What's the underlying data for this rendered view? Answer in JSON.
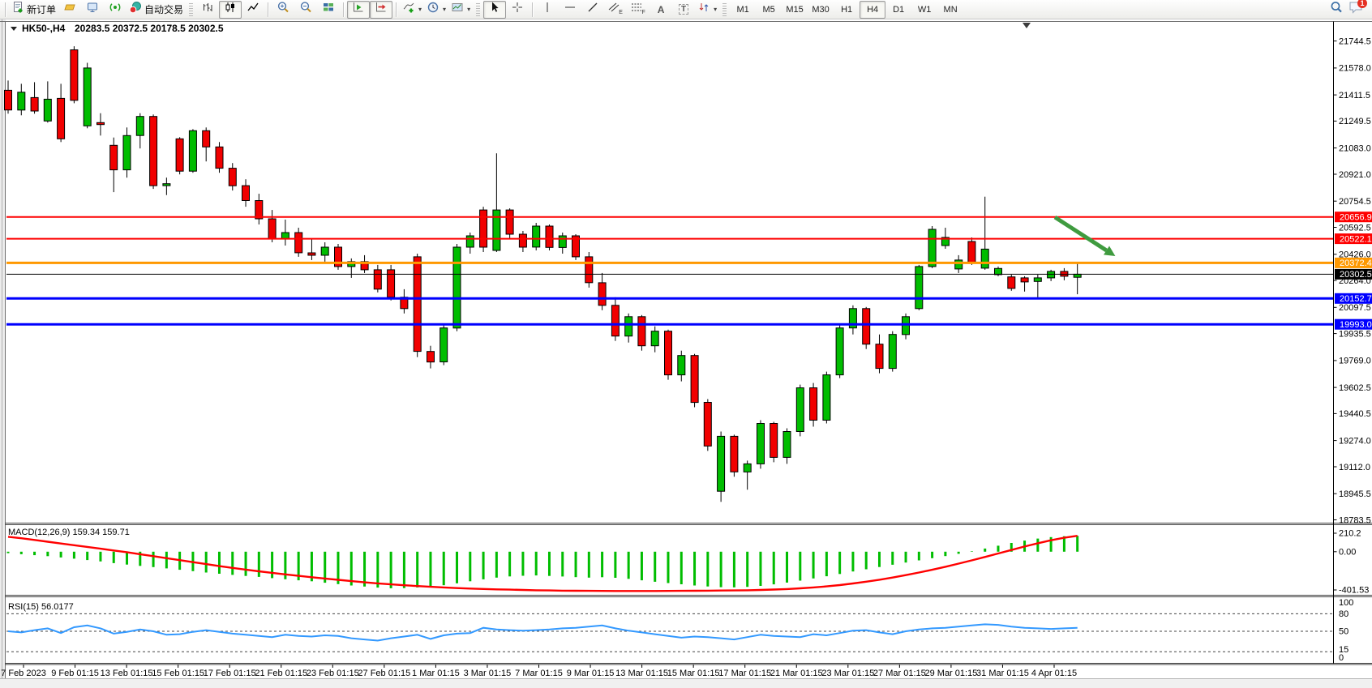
{
  "toolbar": {
    "new_order": "新订单",
    "autotrading": "自动交易",
    "timeframes": [
      "M1",
      "M5",
      "M15",
      "M30",
      "H1",
      "H4",
      "D1",
      "W1",
      "MN"
    ],
    "active_timeframe": "H4",
    "notification_count": "1",
    "channel_suffix": "E",
    "fibo_suffix": "F",
    "text_tool": "A",
    "label_tool": "T"
  },
  "chart_data": {
    "type": "candlestick",
    "symbol": "HK50-",
    "timeframe": "H4",
    "title_text": "HK50-,H4",
    "title_ohlc": "20283.5 20372.5 20178.5 20302.5",
    "last_bar": {
      "open": 20283.5,
      "high": 20372.5,
      "low": 20178.5,
      "close": 20302.5
    },
    "colors": {
      "bull": "#00bd00",
      "bear": "#f10000",
      "wick": "#000000",
      "macd_hist": "#00bd00",
      "macd_signal": "#ff0000",
      "rsi_line": "#3399ff",
      "arrow": "#3f9b3f",
      "axis_text": "#000000"
    },
    "price_axis_ticks": [
      "21744.5",
      "21578.0",
      "21411.5",
      "21249.5",
      "21083.0",
      "20921.0",
      "20754.5",
      "20592.5",
      "20426.0",
      "20264.0",
      "20097.5",
      "19935.5",
      "19769.0",
      "19602.5",
      "19440.5",
      "19274.0",
      "19112.0",
      "18945.5",
      "18783.5"
    ],
    "hlines": [
      {
        "price": 20656.9,
        "label": "20656.9",
        "color": "#fe0000",
        "width": 2
      },
      {
        "price": 20522.1,
        "label": "20522.1",
        "color": "#fe0000",
        "width": 2
      },
      {
        "price": 20372.4,
        "label": "20372.4",
        "color": "#ff9800",
        "width": 3
      },
      {
        "price": 20302.5,
        "label": "20302.5",
        "color": "#000000",
        "width": 1,
        "current": true
      },
      {
        "price": 20152.7,
        "label": "20152.7",
        "color": "#0000fe",
        "width": 3
      },
      {
        "price": 19993.0,
        "label": "19993.0",
        "color": "#0000fe",
        "width": 3
      }
    ],
    "x_labels": [
      "7 Feb 2023",
      "9 Feb 01:15",
      "13 Feb 01:15",
      "15 Feb 01:15",
      "17 Feb 01:15",
      "21 Feb 01:15",
      "23 Feb 01:15",
      "27 Feb 01:15",
      "1 Mar 01:15",
      "3 Mar 01:15",
      "7 Mar 01:15",
      "9 Mar 01:15",
      "13 Mar 01:15",
      "15 Mar 01:15",
      "17 Mar 01:15",
      "21 Mar 01:15",
      "23 Mar 01:15",
      "27 Mar 01:15",
      "29 Mar 01:15",
      "31 Mar 01:15",
      "4 Apr 01:15"
    ],
    "candles": [
      [
        21440,
        21500,
        21295,
        21318
      ],
      [
        21318,
        21480,
        21285,
        21428
      ],
      [
        21395,
        21490,
        21295,
        21312
      ],
      [
        21250,
        21495,
        21240,
        21385
      ],
      [
        21390,
        21480,
        21120,
        21140
      ],
      [
        21690,
        21712,
        21360,
        21378
      ],
      [
        21220,
        21610,
        21205,
        21578
      ],
      [
        21240,
        21298,
        21160,
        21228
      ],
      [
        21100,
        21148,
        20810,
        20948
      ],
      [
        20948,
        21210,
        20900,
        21160
      ],
      [
        21160,
        21298,
        21080,
        21278
      ],
      [
        21278,
        21290,
        20830,
        20850
      ],
      [
        20850,
        20900,
        20792,
        20862
      ],
      [
        21140,
        21150,
        20920,
        20940
      ],
      [
        20940,
        21200,
        20930,
        21190
      ],
      [
        21190,
        21210,
        21000,
        21090
      ],
      [
        21090,
        21120,
        20930,
        20958
      ],
      [
        20958,
        20990,
        20820,
        20850
      ],
      [
        20850,
        20890,
        20720,
        20758
      ],
      [
        20758,
        20800,
        20610,
        20645
      ],
      [
        20645,
        20700,
        20500,
        20520
      ],
      [
        20520,
        20640,
        20480,
        20560
      ],
      [
        20560,
        20590,
        20410,
        20435
      ],
      [
        20435,
        20520,
        20390,
        20420
      ],
      [
        20420,
        20500,
        20380,
        20470
      ],
      [
        20470,
        20490,
        20330,
        20350
      ],
      [
        20350,
        20400,
        20280,
        20380
      ],
      [
        20380,
        20420,
        20310,
        20330
      ],
      [
        20330,
        20360,
        20190,
        20210
      ],
      [
        20330,
        20360,
        20140,
        20160
      ],
      [
        20160,
        20210,
        20060,
        20090
      ],
      [
        20410,
        20430,
        19790,
        19825
      ],
      [
        19825,
        19860,
        19720,
        19760
      ],
      [
        19760,
        19990,
        19740,
        19970
      ],
      [
        19970,
        20490,
        19950,
        20470
      ],
      [
        20470,
        20560,
        20430,
        20540
      ],
      [
        20700,
        20720,
        20440,
        20470
      ],
      [
        20450,
        21050,
        20440,
        20700
      ],
      [
        20700,
        20710,
        20520,
        20550
      ],
      [
        20550,
        20570,
        20440,
        20470
      ],
      [
        20470,
        20620,
        20450,
        20600
      ],
      [
        20600,
        20610,
        20450,
        20468
      ],
      [
        20468,
        20560,
        20430,
        20540
      ],
      [
        20540,
        20550,
        20390,
        20410
      ],
      [
        20410,
        20440,
        20220,
        20250
      ],
      [
        20250,
        20310,
        20080,
        20110
      ],
      [
        20110,
        20160,
        19890,
        19920
      ],
      [
        19920,
        20060,
        19880,
        20040
      ],
      [
        20040,
        20050,
        19830,
        19860
      ],
      [
        19860,
        19980,
        19820,
        19950
      ],
      [
        19950,
        19960,
        19650,
        19680
      ],
      [
        19680,
        19830,
        19640,
        19800
      ],
      [
        19800,
        19810,
        19480,
        19510
      ],
      [
        19510,
        19530,
        19210,
        19240
      ],
      [
        18960,
        19330,
        18895,
        19300
      ],
      [
        19300,
        19310,
        19050,
        19080
      ],
      [
        19080,
        19150,
        18970,
        19130
      ],
      [
        19130,
        19400,
        19100,
        19380
      ],
      [
        19380,
        19390,
        19140,
        19170
      ],
      [
        19170,
        19350,
        19130,
        19330
      ],
      [
        19330,
        19620,
        19300,
        19600
      ],
      [
        19600,
        19630,
        19360,
        19400
      ],
      [
        19400,
        19700,
        19380,
        19680
      ],
      [
        19680,
        19990,
        19660,
        19970
      ],
      [
        19970,
        20110,
        19930,
        20090
      ],
      [
        20090,
        20100,
        19840,
        19870
      ],
      [
        19870,
        19930,
        19690,
        19720
      ],
      [
        19720,
        19950,
        19700,
        19930
      ],
      [
        19930,
        20060,
        19900,
        20040
      ],
      [
        20090,
        20360,
        20080,
        20350
      ],
      [
        20350,
        20600,
        20340,
        20580
      ],
      [
        20480,
        20590,
        20460,
        20530
      ],
      [
        20335,
        20420,
        20310,
        20390
      ],
      [
        20505,
        20530,
        20360,
        20375
      ],
      [
        20340,
        20782,
        20330,
        20458
      ],
      [
        20300,
        20350,
        20290,
        20338
      ],
      [
        20286,
        20300,
        20200,
        20215
      ],
      [
        20280,
        20290,
        20195,
        20255
      ],
      [
        20258,
        20300,
        20156,
        20280
      ],
      [
        20280,
        20330,
        20260,
        20320
      ],
      [
        20320,
        20340,
        20265,
        20290
      ],
      [
        20283.5,
        20372.5,
        20178.5,
        20302.5
      ]
    ],
    "annotation_arrow": {
      "from": {
        "index": 79.3,
        "price": 20655
      },
      "to": {
        "index": 83.2,
        "price": 20450
      }
    },
    "macd": {
      "label": "MACD(12,26,9)",
      "value": "159.34",
      "signal_value": "159.71",
      "axis_labels": [
        "210.2",
        "0.00",
        "-401.53"
      ],
      "histogram": [
        -15,
        -25,
        -35,
        -45,
        -58,
        -70,
        -84,
        -98,
        -115,
        -130,
        -143,
        -155,
        -168,
        -182,
        -196,
        -210,
        -222,
        -233,
        -244,
        -254,
        -266,
        -277,
        -288,
        -298,
        -312,
        -326,
        -340,
        -351,
        -361,
        -368,
        -366,
        -360,
        -352,
        -338,
        -318,
        -298,
        -278,
        -261,
        -249,
        -242,
        -239,
        -244,
        -250,
        -256,
        -261,
        -257,
        -263,
        -273,
        -288,
        -303,
        -316,
        -328,
        -340,
        -350,
        -357,
        -359,
        -354,
        -344,
        -329,
        -311,
        -291,
        -269,
        -247,
        -224,
        -199,
        -177,
        -154,
        -131,
        -109,
        -87,
        -65,
        -44,
        -21,
        5,
        32,
        60,
        88,
        112,
        132,
        147,
        156,
        160
      ],
      "signal": [
        150,
        135,
        118,
        100,
        82,
        65,
        48,
        30,
        12,
        -5,
        -25,
        -45,
        -65,
        -85,
        -105,
        -125,
        -145,
        -163,
        -180,
        -197,
        -213,
        -228,
        -243,
        -257,
        -270,
        -283,
        -296,
        -308,
        -319,
        -329,
        -338,
        -346,
        -353,
        -360,
        -366,
        -371,
        -375,
        -379,
        -382,
        -385,
        -388,
        -390,
        -392,
        -393,
        -394,
        -395,
        -396,
        -396,
        -396,
        -396,
        -395,
        -394,
        -393,
        -392,
        -391,
        -390,
        -388,
        -385,
        -381,
        -376,
        -369,
        -360,
        -349,
        -336,
        -320,
        -302,
        -282,
        -260,
        -236,
        -210,
        -182,
        -152,
        -120,
        -87,
        -53,
        -18,
        17,
        52,
        85,
        115,
        140,
        160
      ]
    },
    "rsi": {
      "label": "RSI(15)",
      "value": "56.0177",
      "axis_labels": [
        "100",
        "80",
        "50",
        "15",
        "0"
      ],
      "dashed_levels": [
        80,
        50,
        15
      ],
      "values": [
        50,
        48,
        52,
        55,
        47,
        57,
        60,
        55,
        46,
        49,
        53,
        50,
        44,
        45,
        49,
        52,
        49,
        46,
        44,
        42,
        40,
        44,
        42,
        41,
        43,
        42,
        38,
        36,
        34,
        38,
        41,
        44,
        37,
        43,
        46,
        47,
        56,
        53,
        52,
        51,
        52,
        53,
        55,
        56,
        58,
        60,
        55,
        51,
        48,
        45,
        42,
        39,
        41,
        40,
        38,
        36,
        40,
        44,
        42,
        41,
        40,
        45,
        43,
        47,
        51,
        52,
        48,
        45,
        50,
        53,
        55,
        56,
        58,
        60,
        62,
        61,
        58,
        56,
        55,
        54,
        55,
        56
      ]
    }
  }
}
